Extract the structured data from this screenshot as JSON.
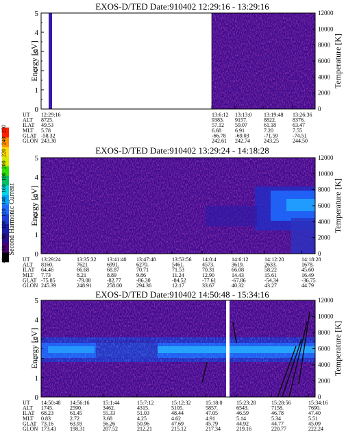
{
  "colorbar": {
    "label": "Second Harmonic Current",
    "ticks": [
      "40",
      "60",
      "80",
      "100",
      "120",
      "140",
      "160",
      "180",
      "200",
      "220",
      "240",
      "250"
    ],
    "colors": [
      "#000000",
      "#4b0073",
      "#2a0f8a",
      "#1a1aa8",
      "#1f3fd6",
      "#1e6bff",
      "#00a6ff",
      "#00d6e0",
      "#00c060",
      "#30e000",
      "#d8e800",
      "#ffe000",
      "#ff9000",
      "#ff2000"
    ]
  },
  "chart_data": [
    {
      "type": "heatmap",
      "title": "EXOS-D/TED   Date:910402   12:29:16 - 13:29:16",
      "ylabel": "Energy [eV]",
      "y2label": "Temperature [K]",
      "ylim": [
        0,
        5
      ],
      "y2lim": [
        0,
        12000
      ],
      "yticks": [
        "0",
        "1",
        "2",
        "3",
        "4",
        "5"
      ],
      "y2ticks": [
        "0",
        "2000",
        "4000",
        "6000",
        "8000",
        "10000",
        "12000"
      ],
      "data_coverage": "sparse: one column at start, continuous from 13:06:12",
      "orbit_table": {
        "row_labels": [
          "UT",
          "ALT",
          "ILAT",
          "MLT",
          "GLAT",
          "GLON"
        ],
        "columns": [
          [
            "12:29:16",
            "8725.",
            "49.53",
            "5.78",
            "-58.32",
            "243.30"
          ],
          [
            "13:6:12",
            "9383.",
            "57.12",
            "6.68",
            "-66.78",
            "242.61"
          ],
          [
            "13:13:0",
            "9157.",
            "59.07",
            "6.91",
            "-69.03",
            "242.74"
          ],
          [
            "13:19:48",
            "8822.",
            "61.18",
            "7.20",
            "-71.59",
            "243.25"
          ],
          [
            "13:26:36",
            "8376.",
            "63.47",
            "7.55",
            "-74.51",
            "244.50"
          ]
        ]
      }
    },
    {
      "type": "heatmap",
      "title": "EXOS-D/TED   Date:910402   13:29:24 - 14:18:28",
      "ylabel": "Energy [eV]",
      "y2label": "Temperature [K]",
      "ylim": [
        0,
        5
      ],
      "y2lim": [
        0,
        12000
      ],
      "yticks": [
        "0",
        "1",
        "2",
        "3",
        "4",
        "5"
      ],
      "y2ticks": [
        "0",
        "2000",
        "4000",
        "6000",
        "8000",
        "10000",
        "12000"
      ],
      "orbit_table": {
        "row_labels": [
          "UT",
          "ALT",
          "ILAT",
          "MLT",
          "GLAT",
          "GLON"
        ],
        "columns": [
          [
            "13:29:24",
            "8160.",
            "64.46",
            "7.73",
            "-75.85",
            "245.39"
          ],
          [
            "13:35:32",
            "7621",
            "66.68",
            "8.21",
            "-79.08",
            "248.91"
          ],
          [
            "13:41:40",
            "6991.",
            "68.87",
            "8.89",
            "-82.77",
            "258.00"
          ],
          [
            "13:47:48",
            "6270.",
            "70.71",
            "9.86",
            "-86.30",
            "294.36"
          ],
          [
            "13:53:56",
            "5461.",
            "71.53",
            "11.24",
            "-84.52",
            "12.17"
          ],
          [
            "14:0:4",
            "4573.",
            "70.31",
            "12.90",
            "-77.61",
            "33.67"
          ],
          [
            "14:6:12",
            "3619.",
            "66.08",
            "14.43",
            "-67.86",
            "40.32"
          ],
          [
            "14:12:20",
            "2633.",
            "58.22",
            "15.61",
            "-54.34",
            "43.27"
          ],
          [
            "14:18:28",
            "1678.",
            "45.60",
            "16.49",
            "-36.75",
            "44.79"
          ]
        ]
      }
    },
    {
      "type": "heatmap",
      "title": "EXOS-D/TED   Date:910402   14:50:48 - 15:34:16",
      "ylabel": "Energy [eV]",
      "y2label": "Temperature [K]",
      "ylim": [
        0,
        5
      ],
      "y2lim": [
        0,
        12000
      ],
      "yticks": [
        "0",
        "1",
        "2",
        "3",
        "4",
        "5"
      ],
      "y2ticks": [
        "0",
        "2000",
        "4000",
        "6000",
        "8000",
        "10000",
        "12000"
      ],
      "orbit_table": {
        "row_labels": [
          "UT",
          "ALT",
          "ILAT",
          "MLT",
          "GLAT",
          "GLON"
        ],
        "columns": [
          [
            "14:50:48",
            "1745.",
            "68.23",
            "0.83",
            "73.16",
            "173.43"
          ],
          [
            "14:56:16",
            "2590.",
            "61.45",
            "2.72",
            "63.93",
            "198.31"
          ],
          [
            "15:1:44",
            "3462.",
            "55.33",
            "3.68",
            "56.26",
            "207.52"
          ],
          [
            "15:7:12",
            "4315.",
            "51.03",
            "4.25",
            "50.96",
            "212.21"
          ],
          [
            "15:12:32",
            "5105.",
            "48.44",
            "4.62",
            "47.69",
            "215.12"
          ],
          [
            "15:18:0",
            "5857.",
            "47.05",
            "4.91",
            "45.79",
            "217.34"
          ],
          [
            "15:23:28",
            "6543.",
            "46.59",
            "5.14",
            "44.92",
            "219.16"
          ],
          [
            "15:28:56",
            "7158.",
            "46.78",
            "5.34",
            "44.77",
            "220.77"
          ],
          [
            "15:34:16",
            "7690.",
            "47.40",
            "5.51",
            "45.09",
            "222.24"
          ]
        ]
      }
    }
  ]
}
